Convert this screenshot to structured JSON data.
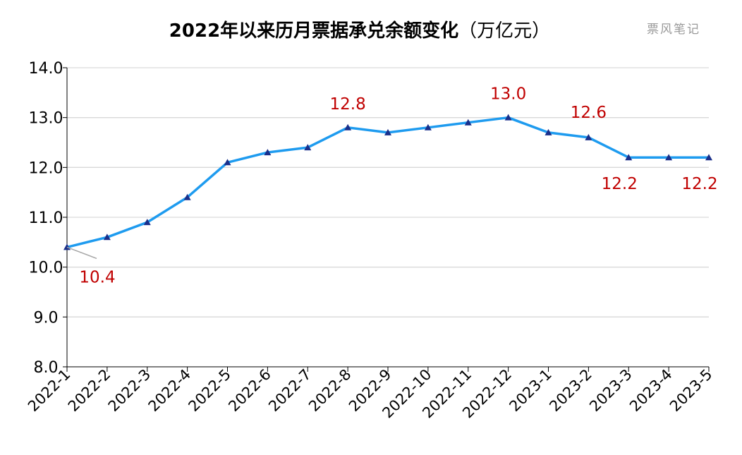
{
  "chart_data": {
    "type": "line",
    "title": "2022年以来历月票据承兑余额变化",
    "title_unit": "（万亿元）",
    "watermark": "票风笔记",
    "categories": [
      "2022-1",
      "2022-2",
      "2022-3",
      "2022-4",
      "2022-5",
      "2022-6",
      "2022-7",
      "2022-8",
      "2022-9",
      "2022-10",
      "2022-11",
      "2022-12",
      "2023-1",
      "2023-2",
      "2023-3",
      "2023-4",
      "2023-5"
    ],
    "series": [
      {
        "values": [
          10.4,
          10.6,
          10.9,
          11.4,
          12.1,
          12.3,
          12.4,
          12.8,
          12.7,
          12.8,
          12.9,
          13.0,
          12.7,
          12.6,
          12.2,
          12.2,
          12.2
        ]
      }
    ],
    "ylim": [
      8.0,
      14.0
    ],
    "ytick_labels": [
      "8.0",
      "9.0",
      "10.0",
      "11.0",
      "12.0",
      "13.0",
      "14.0"
    ],
    "grid": true,
    "line_color": "#1e9bef",
    "marker_color": "#1a2f8a",
    "label_color": "#c00000",
    "data_labels": [
      {
        "index": 0,
        "text": "10.4"
      },
      {
        "index": 7,
        "text": "12.8"
      },
      {
        "index": 11,
        "text": "13.0"
      },
      {
        "index": 13,
        "text": "12.6"
      },
      {
        "index": 14,
        "text": "12.2"
      },
      {
        "index": 16,
        "text": "12.2"
      }
    ]
  }
}
